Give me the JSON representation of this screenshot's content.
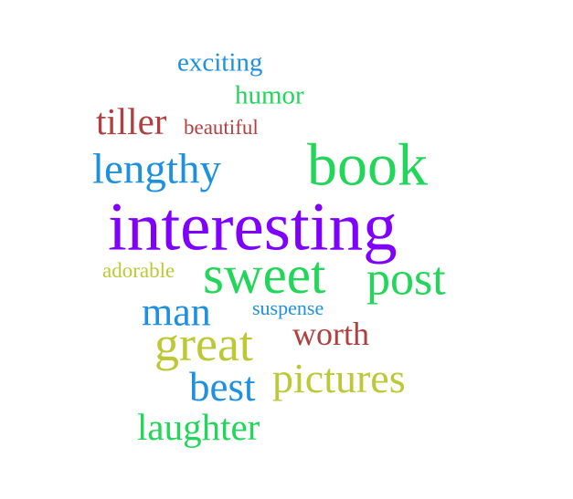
{
  "colors": {
    "blue": "#1e90e0",
    "green": "#22d65a",
    "red": "#b04040",
    "purple": "#8000ff",
    "olive": "#bcc935"
  },
  "words": [
    {
      "key": "exciting",
      "text": "exciting",
      "color": "#1e90e0"
    },
    {
      "key": "humor",
      "text": "humor",
      "color": "#22d65a"
    },
    {
      "key": "tiller",
      "text": "tiller",
      "color": "#b04040"
    },
    {
      "key": "beautiful",
      "text": "beautiful",
      "color": "#b04040"
    },
    {
      "key": "lengthy",
      "text": "lengthy",
      "color": "#1e90e0"
    },
    {
      "key": "book",
      "text": "book",
      "color": "#22d65a"
    },
    {
      "key": "interesting",
      "text": "interesting",
      "color": "#8000ff"
    },
    {
      "key": "adorable",
      "text": "adorable",
      "color": "#bcc935"
    },
    {
      "key": "sweet",
      "text": "sweet",
      "color": "#22d65a"
    },
    {
      "key": "post",
      "text": "post",
      "color": "#22d65a"
    },
    {
      "key": "suspense",
      "text": "suspense",
      "color": "#1e90e0"
    },
    {
      "key": "man",
      "text": "man",
      "color": "#1e90e0"
    },
    {
      "key": "worth",
      "text": "worth",
      "color": "#b04040"
    },
    {
      "key": "great",
      "text": "great",
      "color": "#bcc935"
    },
    {
      "key": "pictures",
      "text": "pictures",
      "color": "#bcc935"
    },
    {
      "key": "best",
      "text": "best",
      "color": "#1e90e0"
    },
    {
      "key": "laughter",
      "text": "laughter",
      "color": "#22d65a"
    }
  ]
}
